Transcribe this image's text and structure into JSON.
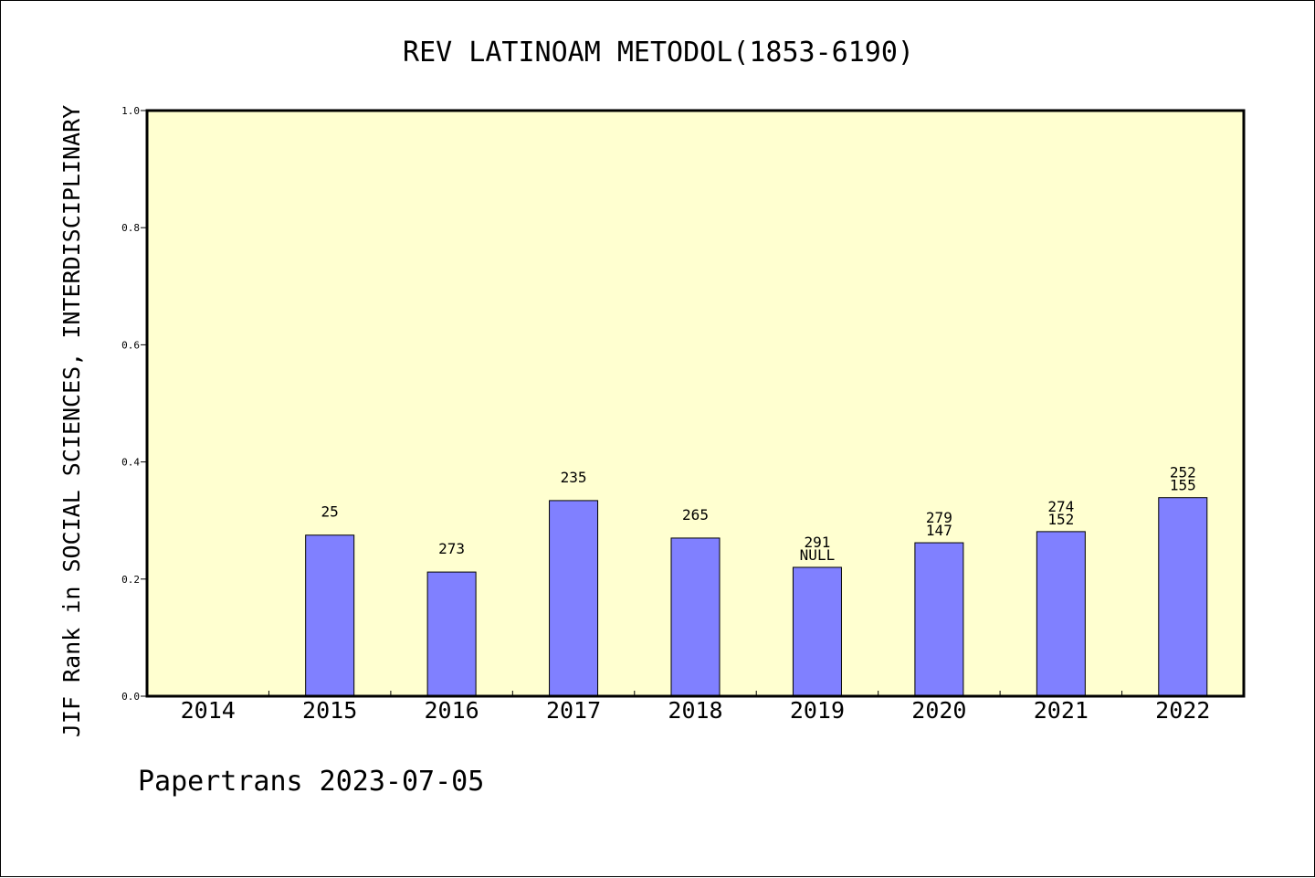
{
  "chart_data": {
    "type": "bar",
    "title": "REV LATINOAM METODOL(1853-6190)",
    "xlabel": "",
    "ylabel": "JIF Rank in SOCIAL SCIENCES, INTERDISCIPLINARY",
    "ylim": [
      0,
      1.0
    ],
    "yticks": [
      "0.0",
      "0.2",
      "0.4",
      "0.6",
      "0.8",
      "1.0"
    ],
    "categories": [
      "2014",
      "2015",
      "2016",
      "2017",
      "2018",
      "2019",
      "2020",
      "2021",
      "2022"
    ],
    "values": [
      null,
      0.275,
      0.212,
      0.334,
      0.27,
      0.22,
      0.262,
      0.281,
      0.339
    ],
    "bar_labels": [
      [],
      [
        "25"
      ],
      [
        "273"
      ],
      [
        "235"
      ],
      [
        "265"
      ],
      [
        "291",
        "NULL"
      ],
      [
        "279",
        "147"
      ],
      [
        "274",
        "152"
      ],
      [
        "252",
        "155"
      ]
    ],
    "bar_color": "#8080ff",
    "plot_background": "#ffffd0",
    "grid": false,
    "legend": "none"
  },
  "footer": {
    "text": "Papertrans 2023-07-05"
  }
}
